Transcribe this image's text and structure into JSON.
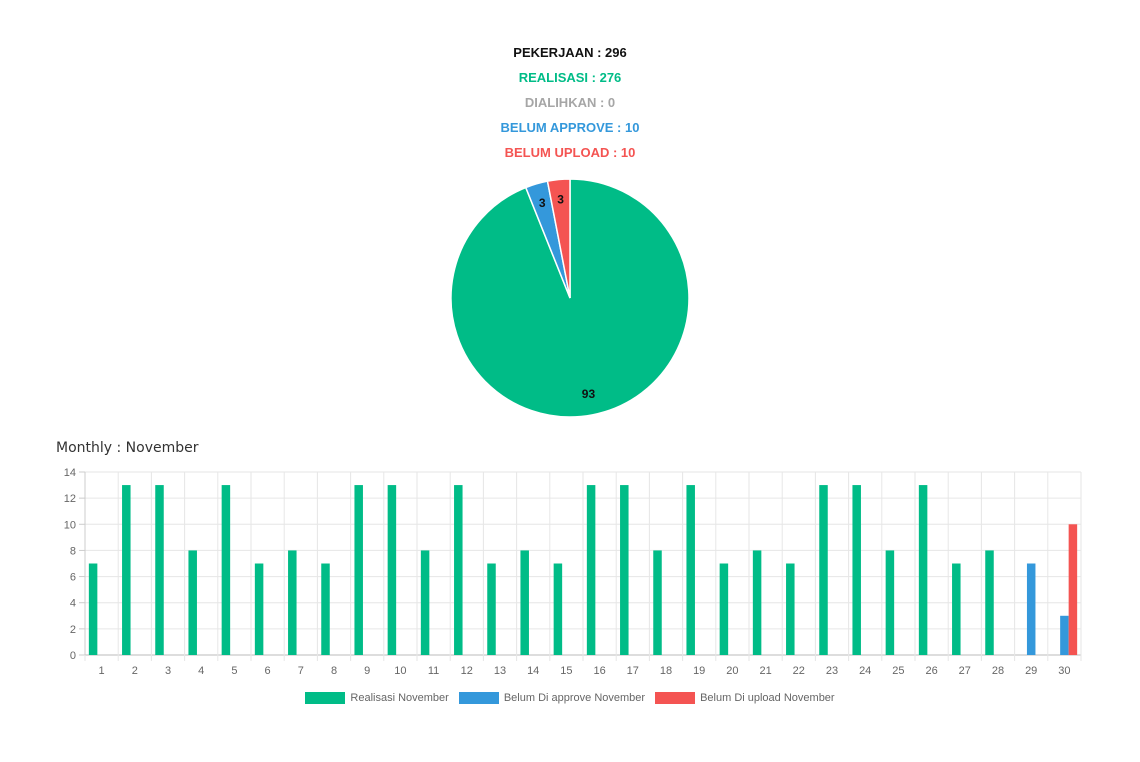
{
  "summary": {
    "pekerjaan": "PEKERJAAN : 296",
    "realisasi": "REALISASI : 276",
    "dialihkan": "DIALIHKAN : 0",
    "belum_approve": "BELUM APPROVE : 10",
    "belum_upload": "BELUM UPLOAD : 10"
  },
  "colors": {
    "black": "#111111",
    "green": "#00bc87",
    "gray": "#a6a6a6",
    "blue": "#3498db",
    "red": "#f45452"
  },
  "monthly_title": "Monthly : November",
  "chart_data": [
    {
      "type": "pie",
      "slices": [
        {
          "label": "93",
          "value": 93,
          "color": "#00bc87"
        },
        {
          "label": "3",
          "value": 3,
          "color": "#3498db"
        },
        {
          "label": "3",
          "value": 3,
          "color": "#f45452"
        }
      ]
    },
    {
      "type": "bar",
      "categories": [
        "1",
        "2",
        "3",
        "4",
        "5",
        "6",
        "7",
        "8",
        "9",
        "10",
        "11",
        "12",
        "13",
        "14",
        "15",
        "16",
        "17",
        "18",
        "19",
        "20",
        "21",
        "22",
        "23",
        "24",
        "25",
        "26",
        "27",
        "28",
        "29",
        "30"
      ],
      "ylim": [
        0,
        14
      ],
      "yticks": [
        0,
        2,
        4,
        6,
        8,
        10,
        12,
        14
      ],
      "grid": true,
      "legend_position": "bottom",
      "series": [
        {
          "name": "Realisasi November",
          "color": "#00bc87",
          "values": [
            7,
            13,
            13,
            8,
            13,
            7,
            8,
            7,
            13,
            13,
            8,
            13,
            7,
            8,
            7,
            13,
            13,
            8,
            13,
            7,
            8,
            7,
            13,
            13,
            8,
            13,
            7,
            8,
            0,
            0
          ]
        },
        {
          "name": "Belum Di approve November",
          "color": "#3498db",
          "values": [
            0,
            0,
            0,
            0,
            0,
            0,
            0,
            0,
            0,
            0,
            0,
            0,
            0,
            0,
            0,
            0,
            0,
            0,
            0,
            0,
            0,
            0,
            0,
            0,
            0,
            0,
            0,
            0,
            7,
            3
          ]
        },
        {
          "name": "Belum Di upload November",
          "color": "#f45452",
          "values": [
            0,
            0,
            0,
            0,
            0,
            0,
            0,
            0,
            0,
            0,
            0,
            0,
            0,
            0,
            0,
            0,
            0,
            0,
            0,
            0,
            0,
            0,
            0,
            0,
            0,
            0,
            0,
            0,
            0,
            10
          ]
        }
      ]
    }
  ]
}
